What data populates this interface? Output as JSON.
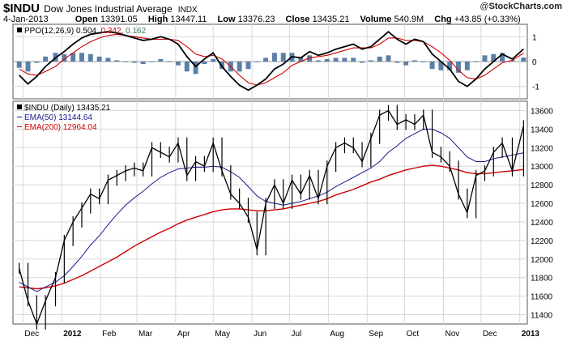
{
  "header": {
    "symbol": "$INDU",
    "name": "Dow Jones Industrial Average",
    "exchange": "INDX",
    "date": "4-Jan-2013",
    "open_label": "Open",
    "open": "13391.05",
    "high_label": "High",
    "high": "13447.11",
    "low_label": "Low",
    "low": "13376.23",
    "close_label": "Close",
    "close": "13435.21",
    "volume_label": "Volume",
    "volume": "540.9M",
    "chg_label": "Chg",
    "chg": "+43.85 (+0.33%)",
    "credit_symbol": "@",
    "credit": "StockCharts.com"
  },
  "ppo_panel": {
    "title": "PPO(12,26,9)",
    "ppo_value": "0.504",
    "signal_value": "0.342",
    "histogram_value": "0.162"
  },
  "price_panel": {
    "title": "$INDU (Daily)",
    "close_value": "13435.21",
    "ema50_label": "EMA(50)",
    "ema50_value": "13144.64",
    "ema200_label": "EMA(200)",
    "ema200_value": "12964.04"
  },
  "colors": {
    "price": "#000000",
    "ema50": "#1a1a8c",
    "ema200": "#d00000",
    "ppo": "#000000",
    "signal": "#d00000",
    "histogram": "#5a7fa8",
    "grid": "#d8d8d8",
    "panel_border": "#555555"
  },
  "chart_data": [
    {
      "type": "line",
      "panel": "PPO(12,26,9)",
      "ylim": [
        -1.5,
        1.5
      ],
      "yticks": [
        "1",
        "0",
        "-1"
      ],
      "x": [
        "2011-11-28",
        "2011-12-05",
        "2011-12-12",
        "2011-12-19",
        "2011-12-27",
        "2012-01-03",
        "2012-01-10",
        "2012-01-17",
        "2012-01-24",
        "2012-01-31",
        "2012-02-07",
        "2012-02-14",
        "2012-02-21",
        "2012-02-28",
        "2012-03-06",
        "2012-03-13",
        "2012-03-20",
        "2012-03-27",
        "2012-04-03",
        "2012-04-10",
        "2012-04-17",
        "2012-04-24",
        "2012-05-01",
        "2012-05-08",
        "2012-05-15",
        "2012-05-22",
        "2012-05-29",
        "2012-06-05",
        "2012-06-12",
        "2012-06-19",
        "2012-06-26",
        "2012-07-03",
        "2012-07-10",
        "2012-07-17",
        "2012-07-24",
        "2012-07-31",
        "2012-08-07",
        "2012-08-14",
        "2012-08-21",
        "2012-08-28",
        "2012-09-04",
        "2012-09-11",
        "2012-09-18",
        "2012-09-25",
        "2012-10-02",
        "2012-10-09",
        "2012-10-16",
        "2012-10-23",
        "2012-10-30",
        "2012-11-06",
        "2012-11-13",
        "2012-11-20",
        "2012-11-27",
        "2012-12-04",
        "2012-12-11",
        "2012-12-18",
        "2012-12-26",
        "2013-01-04"
      ],
      "series": [
        {
          "name": "PPO(12,26,9)",
          "values": [
            -0.55,
            -0.9,
            -0.6,
            -0.2,
            0.15,
            0.4,
            0.7,
            0.95,
            1.1,
            1.15,
            1.2,
            1.15,
            1.05,
            0.95,
            0.85,
            0.9,
            1.0,
            0.9,
            0.7,
            0.2,
            -0.2,
            0.1,
            0.35,
            -0.2,
            -0.6,
            -0.95,
            -1.15,
            -0.95,
            -0.7,
            -0.3,
            -0.1,
            0.2,
            0.15,
            0.4,
            0.25,
            0.35,
            0.5,
            0.6,
            0.7,
            0.5,
            0.6,
            0.9,
            1.2,
            0.9,
            0.7,
            0.9,
            0.8,
            0.3,
            0.0,
            -0.3,
            -0.8,
            -1.0,
            -0.7,
            -0.3,
            0.0,
            0.3,
            0.1,
            0.504
          ]
        },
        {
          "name": "Signal",
          "values": [
            -0.3,
            -0.5,
            -0.55,
            -0.4,
            -0.2,
            0.1,
            0.35,
            0.6,
            0.8,
            0.95,
            1.05,
            1.1,
            1.05,
            1.0,
            0.95,
            0.9,
            0.9,
            0.9,
            0.85,
            0.6,
            0.3,
            0.2,
            0.25,
            0.1,
            -0.2,
            -0.55,
            -0.85,
            -0.95,
            -0.85,
            -0.65,
            -0.45,
            -0.15,
            0.0,
            0.15,
            0.2,
            0.25,
            0.35,
            0.45,
            0.55,
            0.55,
            0.55,
            0.7,
            0.95,
            0.95,
            0.85,
            0.85,
            0.8,
            0.6,
            0.35,
            0.05,
            -0.35,
            -0.65,
            -0.7,
            -0.55,
            -0.3,
            -0.05,
            0.05,
            0.342
          ]
        }
      ]
    },
    {
      "type": "line",
      "panel": "$INDU (Daily)",
      "ylim": [
        11300,
        13700
      ],
      "yticks": [
        11400,
        11600,
        11800,
        12000,
        12200,
        12400,
        12600,
        12800,
        13000,
        13200,
        13400,
        13600
      ],
      "xticks": [
        "Dec",
        "2012",
        "Feb",
        "Mar",
        "Apr",
        "May",
        "Jun",
        "Jul",
        "Aug",
        "Sep",
        "Oct",
        "Nov",
        "Dec",
        "2013"
      ],
      "x": [
        "2011-11-28",
        "2011-12-05",
        "2011-12-12",
        "2011-12-19",
        "2011-12-27",
        "2012-01-03",
        "2012-01-10",
        "2012-01-17",
        "2012-01-24",
        "2012-01-31",
        "2012-02-07",
        "2012-02-14",
        "2012-02-21",
        "2012-02-28",
        "2012-03-06",
        "2012-03-13",
        "2012-03-20",
        "2012-03-27",
        "2012-04-03",
        "2012-04-10",
        "2012-04-17",
        "2012-04-24",
        "2012-05-01",
        "2012-05-08",
        "2012-05-15",
        "2012-05-22",
        "2012-05-29",
        "2012-06-05",
        "2012-06-12",
        "2012-06-19",
        "2012-06-26",
        "2012-07-03",
        "2012-07-10",
        "2012-07-17",
        "2012-07-24",
        "2012-07-31",
        "2012-08-07",
        "2012-08-14",
        "2012-08-21",
        "2012-08-28",
        "2012-09-04",
        "2012-09-11",
        "2012-09-18",
        "2012-09-25",
        "2012-10-02",
        "2012-10-09",
        "2012-10-16",
        "2012-10-23",
        "2012-10-30",
        "2012-11-06",
        "2012-11-13",
        "2012-11-20",
        "2012-11-27",
        "2012-12-04",
        "2012-12-11",
        "2012-12-18",
        "2012-12-26",
        "2013-01-04"
      ],
      "series": [
        {
          "name": "$INDU",
          "values": [
            11900,
            11550,
            11300,
            11550,
            11800,
            12200,
            12400,
            12550,
            12700,
            12650,
            12850,
            12900,
            12950,
            12980,
            12950,
            13200,
            13150,
            13100,
            13250,
            12900,
            13050,
            13000,
            13250,
            12950,
            12700,
            12600,
            12450,
            12100,
            12600,
            12800,
            12600,
            12850,
            12700,
            12900,
            12650,
            13000,
            13200,
            13250,
            13200,
            13050,
            13300,
            13550,
            13600,
            13450,
            13500,
            13450,
            13550,
            13150,
            13100,
            13000,
            12700,
            12500,
            12900,
            12950,
            13150,
            13250,
            12950,
            13435.21
          ]
        },
        {
          "name": "EMA(50)",
          "values": [
            11750,
            11700,
            11650,
            11700,
            11750,
            11820,
            11920,
            12030,
            12150,
            12250,
            12370,
            12480,
            12580,
            12660,
            12730,
            12810,
            12880,
            12930,
            12970,
            12980,
            12990,
            12990,
            13000,
            12990,
            12940,
            12880,
            12780,
            12680,
            12620,
            12600,
            12580,
            12600,
            12620,
            12650,
            12680,
            12720,
            12780,
            12830,
            12880,
            12930,
            12980,
            13050,
            13150,
            13220,
            13300,
            13350,
            13400,
            13400,
            13360,
            13300,
            13200,
            13100,
            13050,
            13050,
            13080,
            13100,
            13120,
            13144.64
          ]
        },
        {
          "name": "EMA(200)",
          "values": [
            11700,
            11690,
            11680,
            11690,
            11710,
            11740,
            11780,
            11820,
            11870,
            11920,
            11970,
            12020,
            12080,
            12140,
            12190,
            12240,
            12290,
            12330,
            12380,
            12420,
            12450,
            12480,
            12510,
            12530,
            12540,
            12540,
            12530,
            12520,
            12520,
            12530,
            12540,
            12560,
            12580,
            12600,
            12620,
            12650,
            12690,
            12720,
            12750,
            12790,
            12830,
            12860,
            12900,
            12930,
            12960,
            12980,
            13000,
            13010,
            13000,
            12980,
            12960,
            12930,
            12920,
            12920,
            12930,
            12940,
            12950,
            12964.04
          ]
        }
      ]
    }
  ]
}
